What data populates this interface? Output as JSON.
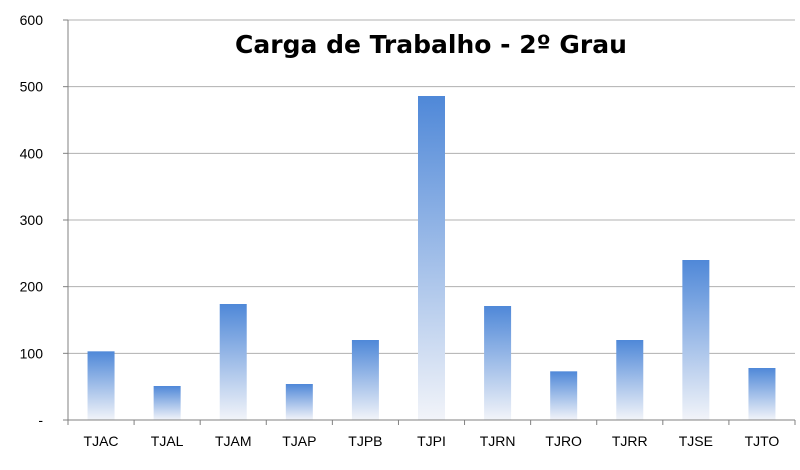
{
  "chart_data": {
    "type": "bar",
    "title": "Carga de Trabalho - 2º Grau",
    "xlabel": "",
    "ylabel": "",
    "categories": [
      "TJAC",
      "TJAL",
      "TJAM",
      "TJAP",
      "TJPB",
      "TJPI",
      "TJRN",
      "TJRO",
      "TJRR",
      "TJSE",
      "TJTO"
    ],
    "values": [
      103,
      51,
      174,
      54,
      120,
      486,
      171,
      73,
      120,
      240,
      78
    ],
    "ylim": [
      0,
      600
    ],
    "y_ticks": [
      0,
      100,
      200,
      300,
      400,
      500,
      600
    ],
    "y_tick_labels": [
      "-",
      "100",
      "200",
      "300",
      "400",
      "500",
      "600"
    ],
    "grid": true,
    "legend": "none",
    "colors": {
      "bar_top": "#4f88d8",
      "bar_bottom": "#f2f4f9",
      "grid": "#b0b0b0",
      "axis": "#808080"
    }
  }
}
